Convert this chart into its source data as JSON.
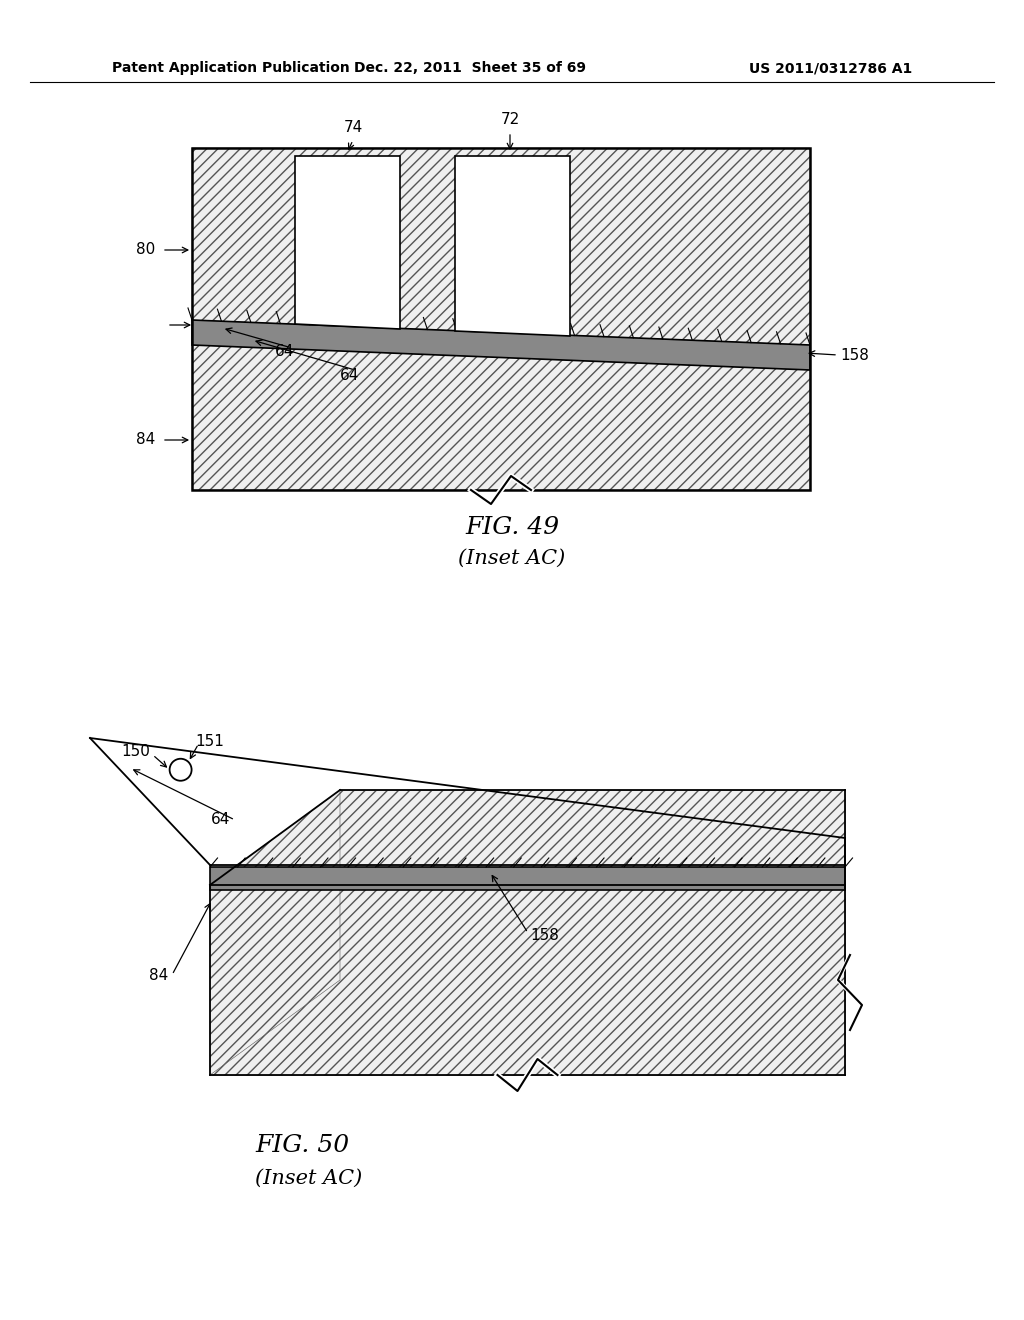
{
  "header_left": "Patent Application Publication",
  "header_mid": "Dec. 22, 2011  Sheet 35 of 69",
  "header_right": "US 2011/0312786 A1",
  "fig49_caption": "FIG. 49",
  "fig49_subcaption": "(Inset AC)",
  "fig50_caption": "FIG. 50",
  "fig50_subcaption": "(Inset AC)",
  "background_color": "#ffffff"
}
